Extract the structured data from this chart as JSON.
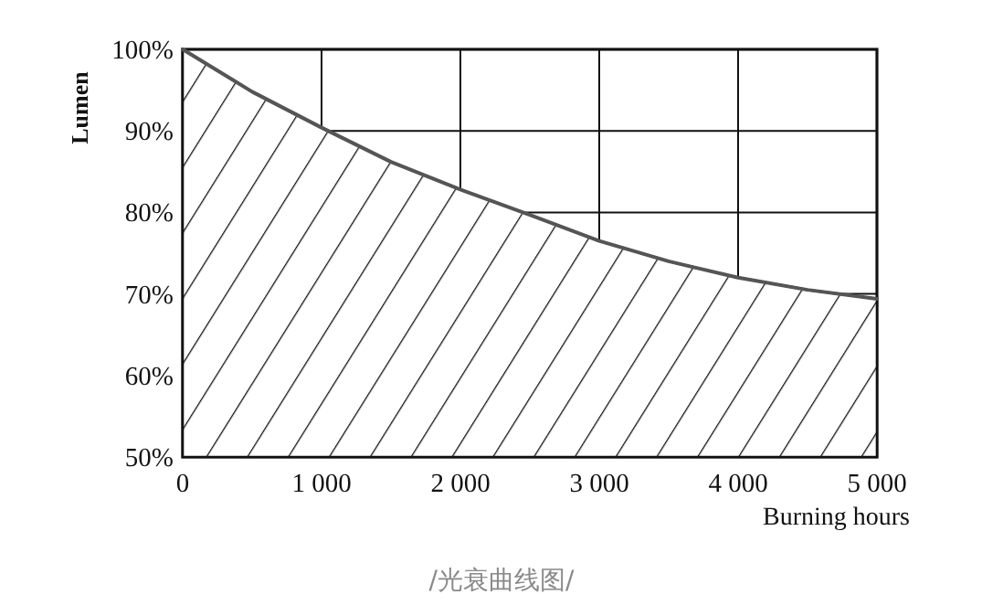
{
  "chart_data": {
    "type": "area",
    "ylabel": "Lumen",
    "xlabel": "Burning hours",
    "annotations": [
      "/光衰曲线图/"
    ],
    "x": [
      0,
      500,
      1000,
      1500,
      2000,
      2500,
      3000,
      3500,
      4000,
      4500,
      5000
    ],
    "series": [
      {
        "color": "#555555",
        "values": [
          100,
          94.8,
          90.4,
          86.2,
          82.8,
          79.7,
          76.5,
          74.0,
          72.0,
          70.5,
          69.4
        ]
      }
    ],
    "xlim": [
      0,
      5000
    ],
    "ylim": [
      50,
      100
    ],
    "xticks": [
      0,
      {
        "value": 1000,
        "label": "1 000"
      },
      {
        "value": 2000,
        "label": "2 000"
      },
      {
        "value": 3000,
        "label": "3 000"
      },
      {
        "value": 4000,
        "label": "4 000"
      },
      {
        "value": 5000,
        "label": "5 000"
      }
    ],
    "yticks": [
      {
        "value": 50,
        "label": "50%"
      },
      {
        "value": 60,
        "label": "60%"
      },
      {
        "value": 70,
        "label": "70%"
      },
      {
        "value": 80,
        "label": "80%"
      },
      {
        "value": 90,
        "label": "90%"
      },
      {
        "value": 100,
        "label": "100%"
      }
    ],
    "grid": true
  }
}
